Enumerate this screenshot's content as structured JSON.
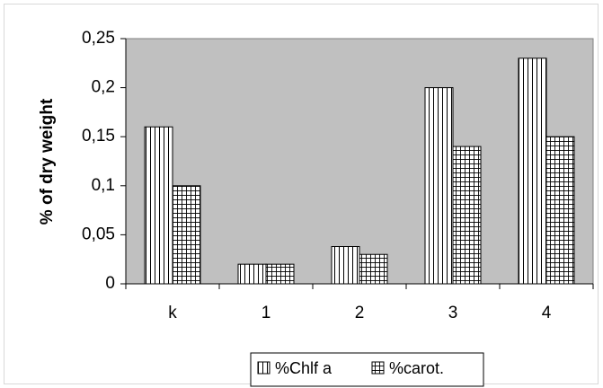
{
  "chart_data": {
    "type": "bar",
    "title": "",
    "xlabel": "",
    "ylabel": "% of dry weight",
    "categories": [
      "k",
      "1",
      "2",
      "3",
      "4"
    ],
    "series": [
      {
        "name": "%Chlf a",
        "values": [
          0.16,
          0.02,
          0.038,
          0.2,
          0.23
        ],
        "pattern": "vertical-stripes"
      },
      {
        "name": "%carot.",
        "values": [
          0.1,
          0.02,
          0.03,
          0.14,
          0.15
        ],
        "pattern": "grid"
      }
    ],
    "ylim": [
      0,
      0.25
    ],
    "yticks": [
      0,
      0.05,
      0.1,
      0.15,
      0.2,
      0.25
    ],
    "ytick_labels": [
      "0",
      "0,05",
      "0,1",
      "0,15",
      "0,2",
      "0,25"
    ],
    "grid": false,
    "legend_position": "bottom",
    "colors": {
      "plot_background": "#c0c0c0",
      "bar_fill": "#ffffff",
      "bar_stroke": "#000000"
    }
  }
}
